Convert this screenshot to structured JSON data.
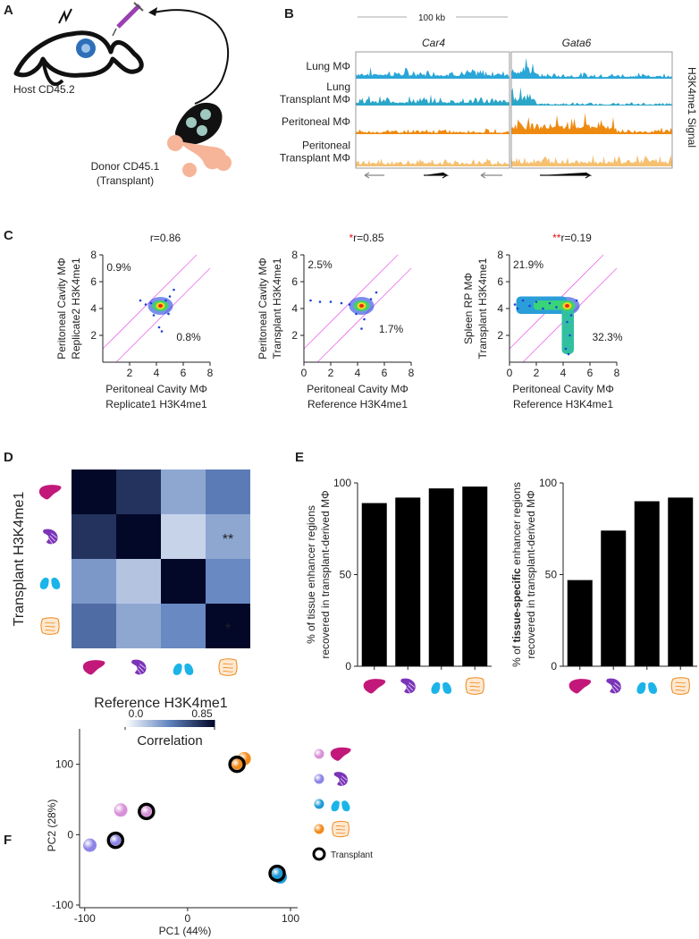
{
  "panel_labels": [
    "A",
    "B",
    "C",
    "D",
    "E",
    "F"
  ],
  "panel_a": {
    "host": "Host CD45.2",
    "donor": [
      "Donor CD45.1",
      "(Transplant)"
    ]
  },
  "panel_b": {
    "scale": "100 kb",
    "genes": [
      "Car4",
      "Gata6"
    ],
    "tracks": [
      [
        "Lung MΦ"
      ],
      [
        "Lung",
        "Transplant MΦ"
      ],
      [
        "Peritoneal MΦ"
      ],
      [
        "Peritoneal",
        "Transplant MΦ"
      ]
    ],
    "track_colors": [
      "#2aa6d8",
      "#2aa6c8",
      "#ef8a10",
      "#f5c070"
    ],
    "signal_label": "H3K4me1 Signal"
  },
  "chart_data": [
    {
      "type": "scatter",
      "title_flag": "",
      "title": "r=0.86",
      "xlabel": [
        "Peritoneal Cavity MΦ",
        "Replicate1 H3K4me1"
      ],
      "ylabel": [
        "Peritoneal Cavity MΦ",
        "Replicate2  H3K4me1"
      ],
      "annotations": [
        "0.9%",
        "0.8%"
      ],
      "color": "#1f3fd6",
      "x": [
        2.8,
        3.2,
        3.6,
        3.9,
        4.1,
        4.3,
        4.5,
        4.7,
        5.0,
        5.3,
        4.2,
        4.4,
        3.8,
        4.9
      ],
      "values": [
        4.6,
        4.3,
        4.4,
        4.0,
        3.9,
        4.2,
        4.5,
        4.6,
        4.9,
        5.4,
        2.6,
        2.3,
        3.5,
        3.6
      ],
      "xlim": [
        0,
        8
      ],
      "ylim": [
        0,
        8
      ],
      "xticks": [
        2,
        4,
        6,
        8
      ],
      "yticks": [
        2,
        4,
        6,
        8
      ]
    },
    {
      "type": "scatter",
      "title_flag": "*",
      "title": "r=0.85",
      "xlabel": [
        "Peritoneal Cavity MΦ",
        "Reference H3K4me1"
      ],
      "ylabel": [
        "Peritoneal Cavity MΦ",
        "Transplant H3K4me1"
      ],
      "annotations": [
        "2.5%",
        "1.7%"
      ],
      "color": "#1f3fd6",
      "x": [
        0.5,
        1.2,
        2.0,
        2.8,
        3.4,
        3.8,
        4.1,
        4.4,
        4.7,
        5.0,
        5.4,
        4.3,
        4.5,
        3.9
      ],
      "values": [
        4.6,
        4.5,
        4.5,
        4.4,
        4.3,
        4.2,
        4.0,
        4.1,
        4.4,
        4.7,
        5.2,
        2.5,
        3.2,
        3.6
      ],
      "xlim": [
        0,
        8
      ],
      "ylim": [
        0,
        8
      ],
      "xticks": [
        0,
        2,
        4,
        6,
        8
      ],
      "yticks": [
        2,
        4,
        6,
        8
      ]
    },
    {
      "type": "scatter",
      "title_flag": "**",
      "title": "r=0.19",
      "xlabel": [
        "Peritoneal Cavity MΦ",
        "Reference H3K4me1"
      ],
      "ylabel": [
        "Spleen RP MΦ",
        "Transplant H3K4me1"
      ],
      "annotations": [
        "21.9%",
        "32.3%"
      ],
      "color": "#1f3fd6",
      "x": [
        0.4,
        0.6,
        1.0,
        1.5,
        2.0,
        2.5,
        3.0,
        3.5,
        4.1,
        4.3,
        4.5,
        4.2,
        4.4,
        4.6,
        5.0
      ],
      "values": [
        4.3,
        4.0,
        4.6,
        4.2,
        4.5,
        4.0,
        4.4,
        4.1,
        4.3,
        3.0,
        2.0,
        1.0,
        0.6,
        3.5,
        4.6
      ],
      "xlim": [
        0,
        8
      ],
      "ylim": [
        0,
        8
      ],
      "xticks": [
        0,
        2,
        4,
        6,
        8
      ],
      "yticks": [
        2,
        4,
        6,
        8
      ]
    },
    {
      "type": "heatmap",
      "xlabel": "Reference H3K4me1",
      "ylabel": "Transplant H3K4me1",
      "values": [
        [
          0.85,
          0.7,
          0.3,
          0.45
        ],
        [
          0.7,
          0.85,
          0.15,
          0.3
        ],
        [
          0.35,
          0.2,
          0.85,
          0.4
        ],
        [
          0.5,
          0.3,
          0.4,
          0.85
        ]
      ],
      "clim": [
        0,
        0.85
      ],
      "cticks": [
        {
          "value": 0,
          "label": "0.0"
        },
        0.85
      ],
      "colorbar_label": "Correlation",
      "annotations": [
        {
          "row": 1,
          "col": 3,
          "text": "**"
        },
        {
          "row": 3,
          "col": 3,
          "text": "*"
        }
      ]
    },
    {
      "type": "bar",
      "categories": [
        null,
        null,
        null,
        null
      ],
      "values": [
        89,
        92,
        97,
        98
      ],
      "color": "#000000",
      "ylabel": [
        [
          "% of tissue enhancer regions"
        ],
        "recovered in transplant-derived MΦ"
      ],
      "ylabel_bold": null,
      "ylim": [
        0,
        100
      ],
      "yticks": [
        0,
        50,
        100
      ]
    },
    {
      "type": "bar",
      "categories": [
        null,
        null,
        null,
        null
      ],
      "values": [
        47,
        74,
        90,
        92
      ],
      "color": "#000000",
      "ylabel": [
        [
          "% of ",
          "tissue-specific",
          " enhancer regions"
        ],
        "recovered in transplant-derived MΦ"
      ],
      "ylabel_bold": 1,
      "ylim": [
        0,
        100
      ],
      "yticks": [
        0,
        50,
        100
      ]
    },
    {
      "type": "pca",
      "xlabel": "PC1 (44%)",
      "ylabel": "PC2 (28%)",
      "xlim": [
        -105,
        100
      ],
      "ylim": [
        -100,
        125
      ],
      "xticks": [
        -100,
        0,
        100
      ],
      "yticks": [
        -100,
        0,
        100
      ],
      "series": [
        {
          "color": "#d890d8",
          "x": [
            -65,
            -40
          ],
          "values": [
            35,
            33
          ]
        },
        {
          "color": "#8c84e6",
          "x": [
            -95,
            -70
          ],
          "values": [
            -15,
            -8
          ]
        },
        {
          "color": "#1e9ad8",
          "x": [
            90,
            87
          ],
          "values": [
            -60,
            -55
          ]
        },
        {
          "color": "#f28a1a",
          "x": [
            55,
            48
          ],
          "values": [
            108,
            100
          ]
        }
      ],
      "transplant_index": 1,
      "legend_label": "Transplant"
    }
  ]
}
